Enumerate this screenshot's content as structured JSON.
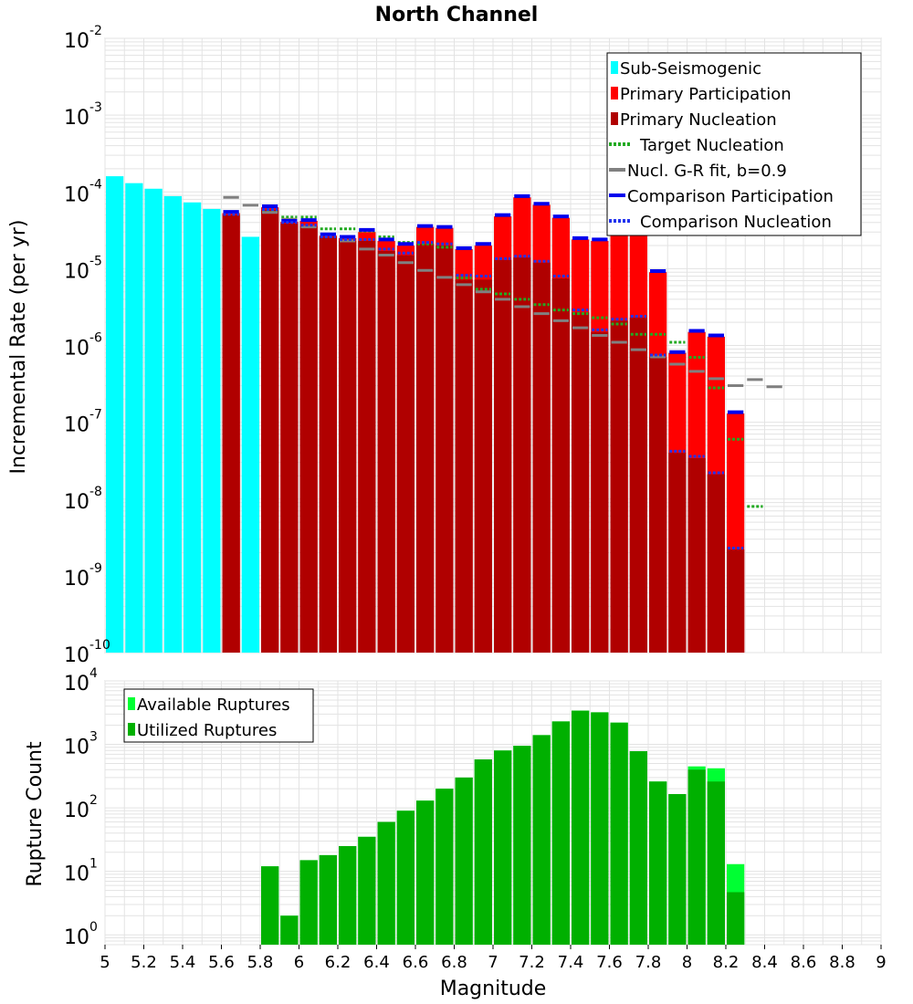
{
  "colors": {
    "sub_seismogenic": "#00ffff",
    "primary_participation": "#ff0000",
    "primary_nucleation": "#b00000",
    "target_nucleation": "#22aa22",
    "gr_fit": "#808080",
    "comparison_participation": "#0000ee",
    "comparison_nucleation": "#2233ee",
    "available_ruptures": "#00ff33",
    "utilized_ruptures": "#00b000",
    "grid": "#e3e3e3"
  },
  "chart_data": [
    {
      "type": "bar",
      "title": "North Channel",
      "xlabel": "",
      "ylabel": "Incremental Rate (per yr)",
      "y_scale": "log",
      "ylim": [
        1e-10,
        0.01
      ],
      "xlim": [
        5,
        9
      ],
      "bin_width": 0.1,
      "yticks": [
        {
          "base": "10",
          "exp": "-10"
        },
        {
          "base": "10",
          "exp": "-9"
        },
        {
          "base": "10",
          "exp": "-8"
        },
        {
          "base": "10",
          "exp": "-7"
        },
        {
          "base": "10",
          "exp": "-6"
        },
        {
          "base": "10",
          "exp": "-5"
        },
        {
          "base": "10",
          "exp": "-4"
        },
        {
          "base": "10",
          "exp": "-3"
        },
        {
          "base": "10",
          "exp": "-2"
        }
      ],
      "legend_position": "top-right",
      "legend": [
        {
          "label": "Sub-Seismogenic",
          "style": "bar",
          "color_key": "sub_seismogenic"
        },
        {
          "label": "Primary Participation",
          "style": "bar",
          "color_key": "primary_participation"
        },
        {
          "label": "Primary Nucleation",
          "style": "bar",
          "color_key": "primary_nucleation"
        },
        {
          "label": "Target Nucleation",
          "style": "dotted",
          "color_key": "target_nucleation"
        },
        {
          "label": "Nucl. G-R fit, b=0.9",
          "style": "solid",
          "color_key": "gr_fit"
        },
        {
          "label": "Comparison Participation",
          "style": "solid",
          "color_key": "comparison_participation"
        },
        {
          "label": "Comparison Nucleation",
          "style": "dotted",
          "color_key": "comparison_nucleation"
        }
      ],
      "series": [
        {
          "key": "sub",
          "style": "bar",
          "color_key": "sub_seismogenic",
          "x": [
            5.05,
            5.15,
            5.25,
            5.35,
            5.45,
            5.55,
            5.75
          ],
          "values": [
            0.00016,
            0.00013,
            0.00011,
            8.8e-05,
            7.3e-05,
            6e-05,
            2.6e-05
          ]
        },
        {
          "key": "part",
          "style": "bar",
          "color_key": "primary_participation",
          "x": [
            5.65,
            5.85,
            5.95,
            6.05,
            6.15,
            6.25,
            6.35,
            6.45,
            6.55,
            6.65,
            6.75,
            6.85,
            6.95,
            7.05,
            7.15,
            7.25,
            7.35,
            7.45,
            7.55,
            7.65,
            7.75,
            7.85,
            7.95,
            8.05,
            8.15,
            8.25
          ],
          "values": [
            5.3e-05,
            6.3e-05,
            4.1e-05,
            4.2e-05,
            2.7e-05,
            2.5e-05,
            3e-05,
            2.3e-05,
            2e-05,
            3.5e-05,
            3.4e-05,
            1.8e-05,
            2e-05,
            4.8e-05,
            8.5e-05,
            6.8e-05,
            4.6e-05,
            2.4e-05,
            2.3e-05,
            3.2e-05,
            2.8e-05,
            9e-06,
            8e-07,
            1.5e-06,
            1.3e-06,
            1.3e-07
          ]
        },
        {
          "key": "nucl",
          "style": "bar",
          "color_key": "primary_nucleation",
          "x": [
            5.65,
            5.85,
            5.95,
            6.05,
            6.15,
            6.25,
            6.35,
            6.45,
            6.55,
            6.65,
            6.75,
            6.85,
            6.95,
            7.05,
            7.15,
            7.25,
            7.35,
            7.45,
            7.55,
            7.65,
            7.75,
            7.85,
            7.95,
            8.05,
            8.15,
            8.25
          ],
          "values": [
            5e-05,
            5.8e-05,
            3.9e-05,
            3.6e-05,
            2.6e-05,
            2.3e-05,
            2.3e-05,
            1.7e-05,
            1.5e-05,
            2.1e-05,
            2e-05,
            7.2e-06,
            7.2e-06,
            1.3e-05,
            1.4e-05,
            1.2e-05,
            7.5e-06,
            2.7e-06,
            1.5e-06,
            2.1e-06,
            2.3e-06,
            7e-07,
            4e-08,
            3.4e-08,
            2.1e-08,
            2.2e-09
          ]
        },
        {
          "key": "target",
          "style": "dotted-step",
          "color_key": "target_nucleation",
          "x": [
            5.65,
            5.85,
            5.95,
            6.05,
            6.15,
            6.25,
            6.35,
            6.45,
            6.55,
            6.65,
            6.75,
            6.85,
            6.95,
            7.05,
            7.15,
            7.25,
            7.35,
            7.45,
            7.55,
            7.65,
            7.75,
            7.85,
            7.95,
            8.05,
            8.15,
            8.25,
            8.35
          ],
          "values": [
            5.2e-05,
            5.7e-05,
            4.7e-05,
            4.7e-05,
            3.3e-05,
            3.3e-05,
            3.1e-05,
            2.6e-05,
            2.2e-05,
            2.1e-05,
            1.9e-05,
            7.6e-06,
            5.4e-06,
            4.7e-06,
            4e-06,
            3.4e-06,
            2.9e-06,
            2.6e-06,
            2.3e-06,
            1.9e-06,
            1.4e-06,
            1.4e-06,
            1.1e-06,
            7e-07,
            2.8e-07,
            6e-08,
            8e-09
          ]
        },
        {
          "key": "gr",
          "style": "solid-step",
          "color_key": "gr_fit",
          "x": [
            5.65,
            5.75,
            5.85,
            5.95,
            6.05,
            6.15,
            6.25,
            6.35,
            6.45,
            6.55,
            6.65,
            6.75,
            6.85,
            6.95,
            7.05,
            7.15,
            7.25,
            7.35,
            7.45,
            7.55,
            7.65,
            7.75,
            7.85,
            7.95,
            8.05,
            8.15,
            8.25,
            8.35,
            8.45
          ],
          "values": [
            8.5e-05,
            6.7e-05,
            5.4e-05,
            4.4e-05,
            3.5e-05,
            2.8e-05,
            2.3e-05,
            1.8e-05,
            1.5e-05,
            1.2e-05,
            9.5e-06,
            7.7e-06,
            6.2e-06,
            5e-06,
            4e-06,
            3.2e-06,
            2.6e-06,
            2.1e-06,
            1.7e-06,
            1.35e-06,
            1.1e-06,
            8.8e-07,
            7.1e-07,
            5.7e-07,
            4.6e-07,
            3.7e-07,
            3e-07,
            3.6e-07,
            2.9e-07
          ]
        },
        {
          "key": "comp_part",
          "style": "solid-step",
          "color_key": "comparison_participation",
          "x": [
            5.65,
            5.85,
            5.95,
            6.05,
            6.15,
            6.25,
            6.35,
            6.45,
            6.55,
            6.65,
            6.75,
            6.85,
            6.95,
            7.05,
            7.15,
            7.25,
            7.35,
            7.45,
            7.55,
            7.85,
            7.95,
            8.05,
            8.15,
            8.25
          ],
          "values": [
            5.5e-05,
            6.5e-05,
            4.2e-05,
            4.3e-05,
            2.8e-05,
            2.6e-05,
            3.2e-05,
            2.4e-05,
            2.1e-05,
            3.6e-05,
            3.5e-05,
            1.85e-05,
            2.1e-05,
            5e-05,
            8.8e-05,
            7e-05,
            4.8e-05,
            2.5e-05,
            2.4e-05,
            9.3e-06,
            8.2e-07,
            1.55e-06,
            1.35e-06,
            1.35e-07
          ]
        },
        {
          "key": "comp_nucl",
          "style": "dotted-step",
          "color_key": "comparison_nucleation",
          "x": [
            5.65,
            5.85,
            5.95,
            6.05,
            6.15,
            6.25,
            6.35,
            6.45,
            6.55,
            6.65,
            6.75,
            6.85,
            6.95,
            7.05,
            7.15,
            7.25,
            7.35,
            7.45,
            7.55,
            7.65,
            7.75,
            7.85,
            7.95,
            8.05,
            8.15,
            8.25
          ],
          "values": [
            5.1e-05,
            5.9e-05,
            4e-05,
            3.7e-05,
            2.6e-05,
            2.4e-05,
            2.4e-05,
            1.8e-05,
            1.6e-05,
            2.2e-05,
            2.1e-05,
            8.2e-06,
            8e-06,
            1.35e-05,
            1.45e-05,
            1.25e-05,
            8e-06,
            2.9e-06,
            1.6e-06,
            2.2e-06,
            2.4e-06,
            7.5e-07,
            4.2e-08,
            3.6e-08,
            2.2e-08,
            2.3e-09
          ]
        }
      ]
    },
    {
      "type": "bar",
      "title": "",
      "xlabel": "Magnitude",
      "ylabel": "Rupture Count",
      "y_scale": "log",
      "ylim": [
        0.7,
        10000
      ],
      "xlim": [
        5,
        9
      ],
      "bin_width": 0.1,
      "yticks": [
        {
          "base": "10",
          "exp": "0"
        },
        {
          "base": "10",
          "exp": "1"
        },
        {
          "base": "10",
          "exp": "2"
        },
        {
          "base": "10",
          "exp": "3"
        },
        {
          "base": "10",
          "exp": "4"
        }
      ],
      "xticks": [
        "5",
        "5.2",
        "5.4",
        "5.6",
        "5.8",
        "6",
        "6.2",
        "6.4",
        "6.6",
        "6.8",
        "7",
        "7.2",
        "7.4",
        "7.6",
        "7.8",
        "8",
        "8.2",
        "8.4",
        "8.6",
        "8.8",
        "9"
      ],
      "legend_position": "top-left",
      "legend": [
        {
          "label": "Available Ruptures",
          "style": "bar",
          "color_key": "available_ruptures"
        },
        {
          "label": "Utilized Ruptures",
          "style": "bar",
          "color_key": "utilized_ruptures"
        }
      ],
      "series": [
        {
          "key": "available",
          "style": "bar",
          "color_key": "available_ruptures",
          "x": [
            5.85,
            5.95,
            6.05,
            6.15,
            6.25,
            6.35,
            6.45,
            6.55,
            6.65,
            6.75,
            6.85,
            6.95,
            7.05,
            7.15,
            7.25,
            7.35,
            7.45,
            7.55,
            7.65,
            7.75,
            7.85,
            7.95,
            8.05,
            8.15,
            8.25
          ],
          "values": [
            12,
            2,
            15,
            18,
            25,
            35,
            60,
            90,
            130,
            200,
            300,
            580,
            800,
            950,
            1400,
            2300,
            3400,
            3200,
            2200,
            780,
            260,
            165,
            450,
            420,
            13
          ]
        },
        {
          "key": "utilized",
          "style": "bar",
          "color_key": "utilized_ruptures",
          "x": [
            5.85,
            5.95,
            6.05,
            6.15,
            6.25,
            6.35,
            6.45,
            6.55,
            6.65,
            6.75,
            6.85,
            6.95,
            7.05,
            7.15,
            7.25,
            7.35,
            7.45,
            7.55,
            7.65,
            7.75,
            7.85,
            7.95,
            8.05,
            8.15,
            8.25
          ],
          "values": [
            12,
            2,
            15,
            18,
            25,
            35,
            60,
            90,
            130,
            200,
            300,
            580,
            800,
            950,
            1400,
            2300,
            3400,
            3200,
            2200,
            780,
            260,
            165,
            400,
            260,
            4.7
          ]
        }
      ]
    }
  ]
}
